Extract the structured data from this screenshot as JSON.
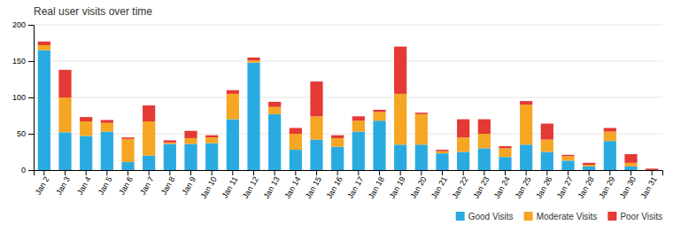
{
  "chart_data": {
    "type": "bar",
    "title": "Real user visits over time",
    "categories": [
      "Jan 2",
      "Jan 3",
      "Jan 4",
      "Jan 5",
      "Jan 6",
      "Jan 7",
      "Jan 8",
      "Jan 9",
      "Jan 10",
      "Jan 11",
      "Jan 12",
      "Jan 13",
      "Jan 14",
      "Jan 15",
      "Jan 16",
      "Jan 17",
      "Jan 18",
      "Jan 19",
      "Jan 20",
      "Jan 21",
      "Jan 22",
      "Jan 23",
      "Jan 24",
      "Jan 25",
      "Jan 26",
      "Jan 27",
      "Jan 28",
      "Jan 29",
      "Jan 30",
      "Jan 31"
    ],
    "series": [
      {
        "name": "Good Visits",
        "color": "#29abe2",
        "values": [
          165,
          52,
          47,
          53,
          11,
          20,
          36,
          36,
          37,
          70,
          148,
          77,
          28,
          42,
          32,
          53,
          68,
          35,
          35,
          23,
          25,
          30,
          18,
          35,
          25,
          13,
          5,
          40,
          5,
          0
        ]
      },
      {
        "name": "Moderate Visits",
        "color": "#f5a623",
        "values": [
          7,
          48,
          20,
          12,
          32,
          47,
          2,
          8,
          8,
          35,
          3,
          10,
          22,
          32,
          12,
          15,
          12,
          70,
          42,
          3,
          20,
          20,
          12,
          55,
          17,
          6,
          2,
          13,
          5,
          0
        ]
      },
      {
        "name": "Poor Visits",
        "color": "#e53935",
        "values": [
          5,
          38,
          6,
          4,
          2,
          22,
          3,
          10,
          3,
          5,
          4,
          7,
          8,
          48,
          4,
          6,
          3,
          65,
          2,
          2,
          25,
          20,
          3,
          5,
          22,
          2,
          3,
          5,
          12,
          2
        ]
      }
    ],
    "stacked": true,
    "ylim": [
      0,
      200
    ],
    "yticks": [
      0,
      50,
      100,
      150,
      200
    ],
    "grid": true,
    "legend": "bottom"
  }
}
